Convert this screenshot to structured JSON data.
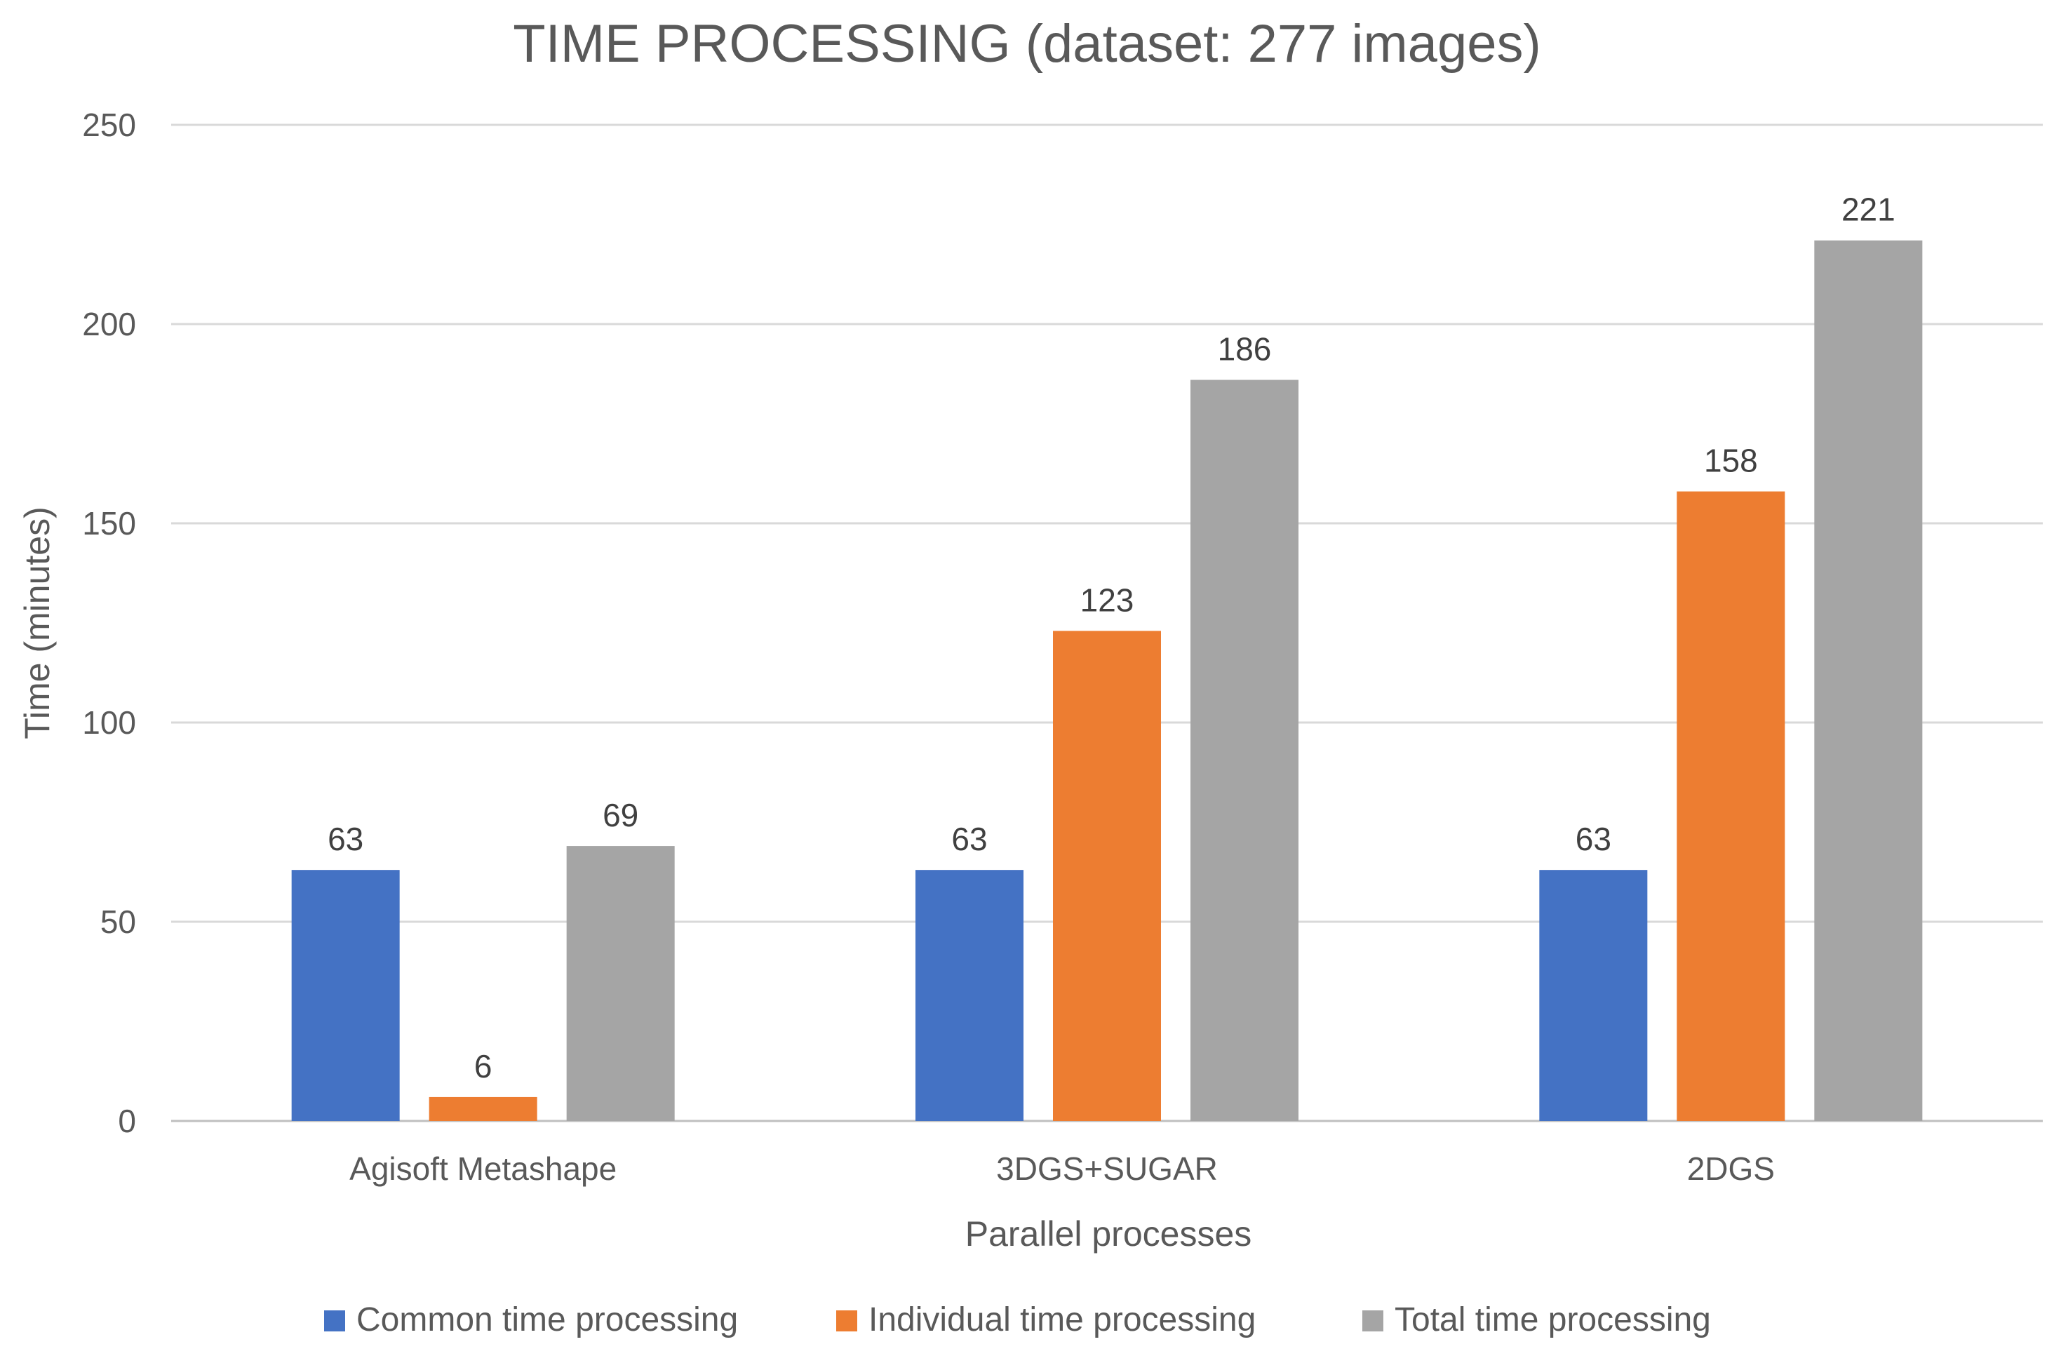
{
  "chart_data": {
    "type": "bar",
    "title": "TIME PROCESSING (dataset: 277 images)",
    "xlabel": "Parallel processes",
    "ylabel": "Time (minutes)",
    "ylim": [
      0,
      250
    ],
    "yticks": [
      0,
      50,
      100,
      150,
      200,
      250
    ],
    "ytick_labels": [
      "0",
      "50",
      "100",
      "150",
      "200",
      "250"
    ],
    "grid": true,
    "legend_position": "bottom",
    "categories": [
      "Agisoft Metashape",
      "3DGS+SUGAR",
      "2DGS"
    ],
    "series": [
      {
        "name": "Common time processing",
        "color": "#4472c4",
        "values": [
          63,
          63,
          63
        ],
        "labels": [
          "63",
          "63",
          "63"
        ]
      },
      {
        "name": "Individual time processing",
        "color": "#ed7d31",
        "values": [
          6,
          123,
          158
        ],
        "labels": [
          "6",
          "123",
          "158"
        ]
      },
      {
        "name": "Total time processing",
        "color": "#a5a5a5",
        "values": [
          69,
          186,
          221
        ],
        "labels": [
          "69",
          "186",
          "221"
        ]
      }
    ]
  }
}
